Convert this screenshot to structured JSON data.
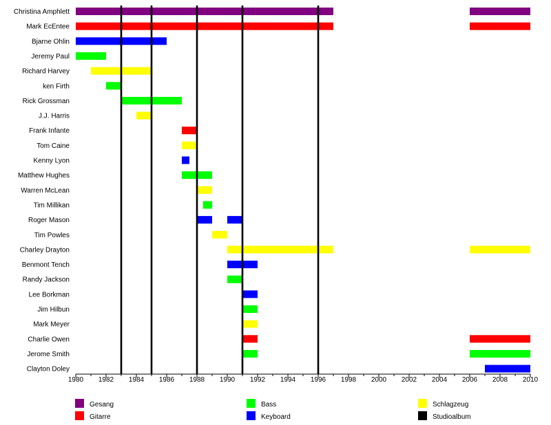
{
  "chart_data": {
    "type": "bar",
    "orientation": "horizontal-timeline",
    "title": "",
    "xlabel": "",
    "ylabel": "",
    "xlim": [
      1980,
      2010
    ],
    "x_ticks": [
      "1980",
      "1982",
      "1984",
      "1986",
      "1988",
      "1990",
      "1992",
      "1994",
      "1996",
      "1998",
      "2000",
      "2002",
      "2004",
      "2006",
      "2008",
      "2010"
    ],
    "grid": false,
    "legend_position": "bottom",
    "colors": {
      "Gesang": "#800080",
      "Gitarre": "#ff0000",
      "Bass": "#00ff00",
      "Keyboard": "#0000ff",
      "Schlagzeug": "#ffff00",
      "Studioalbum": "#000000"
    },
    "legend": [
      {
        "name": "Gesang",
        "color": "#800080"
      },
      {
        "name": "Gitarre",
        "color": "#ff0000"
      },
      {
        "name": "Bass",
        "color": "#00ff00"
      },
      {
        "name": "Keyboard",
        "color": "#0000ff"
      },
      {
        "name": "Schlagzeug",
        "color": "#ffff00"
      },
      {
        "name": "Studioalbum",
        "color": "#000000"
      }
    ],
    "studio_albums": [
      1983,
      1985,
      1988,
      1991,
      1996
    ],
    "members": [
      {
        "name": "Christina Amphlett",
        "periods": [
          {
            "role": "Gesang",
            "start": 1980,
            "end": 1997
          },
          {
            "role": "Gesang",
            "start": 2006,
            "end": 2010
          }
        ]
      },
      {
        "name": "Mark EcEntee",
        "periods": [
          {
            "role": "Gitarre",
            "start": 1980,
            "end": 1997
          },
          {
            "role": "Gitarre",
            "start": 2006,
            "end": 2010
          }
        ]
      },
      {
        "name": "Bjarne Ohlin",
        "periods": [
          {
            "role": "Keyboard",
            "start": 1980,
            "end": 1986
          }
        ]
      },
      {
        "name": "Jeremy Paul",
        "periods": [
          {
            "role": "Bass",
            "start": 1980,
            "end": 1982
          }
        ]
      },
      {
        "name": "Richard Harvey",
        "periods": [
          {
            "role": "Schlagzeug",
            "start": 1981,
            "end": 1985
          }
        ]
      },
      {
        "name": "ken Firth",
        "periods": [
          {
            "role": "Bass",
            "start": 1982,
            "end": 1983
          }
        ]
      },
      {
        "name": "Rick Grossman",
        "periods": [
          {
            "role": "Bass",
            "start": 1983,
            "end": 1987
          }
        ]
      },
      {
        "name": "J.J. Harris",
        "periods": [
          {
            "role": "Schlagzeug",
            "start": 1984,
            "end": 1985
          }
        ]
      },
      {
        "name": "Frank Infante",
        "periods": [
          {
            "role": "Gitarre",
            "start": 1987,
            "end": 1988
          }
        ]
      },
      {
        "name": "Tom Caine",
        "periods": [
          {
            "role": "Schlagzeug",
            "start": 1987,
            "end": 1988
          }
        ]
      },
      {
        "name": "Kenny Lyon",
        "periods": [
          {
            "role": "Keyboard",
            "start": 1987,
            "end": 1987.5
          }
        ]
      },
      {
        "name": "Matthew Hughes",
        "periods": [
          {
            "role": "Bass",
            "start": 1987,
            "end": 1989
          }
        ]
      },
      {
        "name": "Warren McLean",
        "periods": [
          {
            "role": "Schlagzeug",
            "start": 1988,
            "end": 1989
          }
        ]
      },
      {
        "name": "Tim Millikan",
        "periods": [
          {
            "role": "Bass",
            "start": 1988.4,
            "end": 1989
          }
        ]
      },
      {
        "name": "Roger Mason",
        "periods": [
          {
            "role": "Keyboard",
            "start": 1988,
            "end": 1989
          },
          {
            "role": "Keyboard",
            "start": 1990,
            "end": 1991
          }
        ]
      },
      {
        "name": "Tim Powles",
        "periods": [
          {
            "role": "Schlagzeug",
            "start": 1989,
            "end": 1990
          }
        ]
      },
      {
        "name": "Charley Drayton",
        "periods": [
          {
            "role": "Schlagzeug",
            "start": 1990,
            "end": 1997
          },
          {
            "role": "Schlagzeug",
            "start": 2006,
            "end": 2010
          }
        ]
      },
      {
        "name": "Benmont Tench",
        "periods": [
          {
            "role": "Keyboard",
            "start": 1990,
            "end": 1992
          }
        ]
      },
      {
        "name": "Randy Jackson",
        "periods": [
          {
            "role": "Bass",
            "start": 1990,
            "end": 1991
          }
        ]
      },
      {
        "name": "Lee Borkman",
        "periods": [
          {
            "role": "Keyboard",
            "start": 1991,
            "end": 1992
          }
        ]
      },
      {
        "name": "Jim Hilbun",
        "periods": [
          {
            "role": "Bass",
            "start": 1991,
            "end": 1992
          }
        ]
      },
      {
        "name": "Mark Meyer",
        "periods": [
          {
            "role": "Schlagzeug",
            "start": 1991,
            "end": 1992
          }
        ]
      },
      {
        "name": "Charlie Owen",
        "periods": [
          {
            "role": "Gitarre",
            "start": 1991,
            "end": 1992
          },
          {
            "role": "Gitarre",
            "start": 2006,
            "end": 2010
          }
        ]
      },
      {
        "name": "Jerome Smith",
        "periods": [
          {
            "role": "Bass",
            "start": 1991,
            "end": 1992
          },
          {
            "role": "Bass",
            "start": 2006,
            "end": 2010
          }
        ]
      },
      {
        "name": "Clayton Doley",
        "periods": [
          {
            "role": "Keyboard",
            "start": 2007,
            "end": 2010
          }
        ]
      }
    ]
  }
}
